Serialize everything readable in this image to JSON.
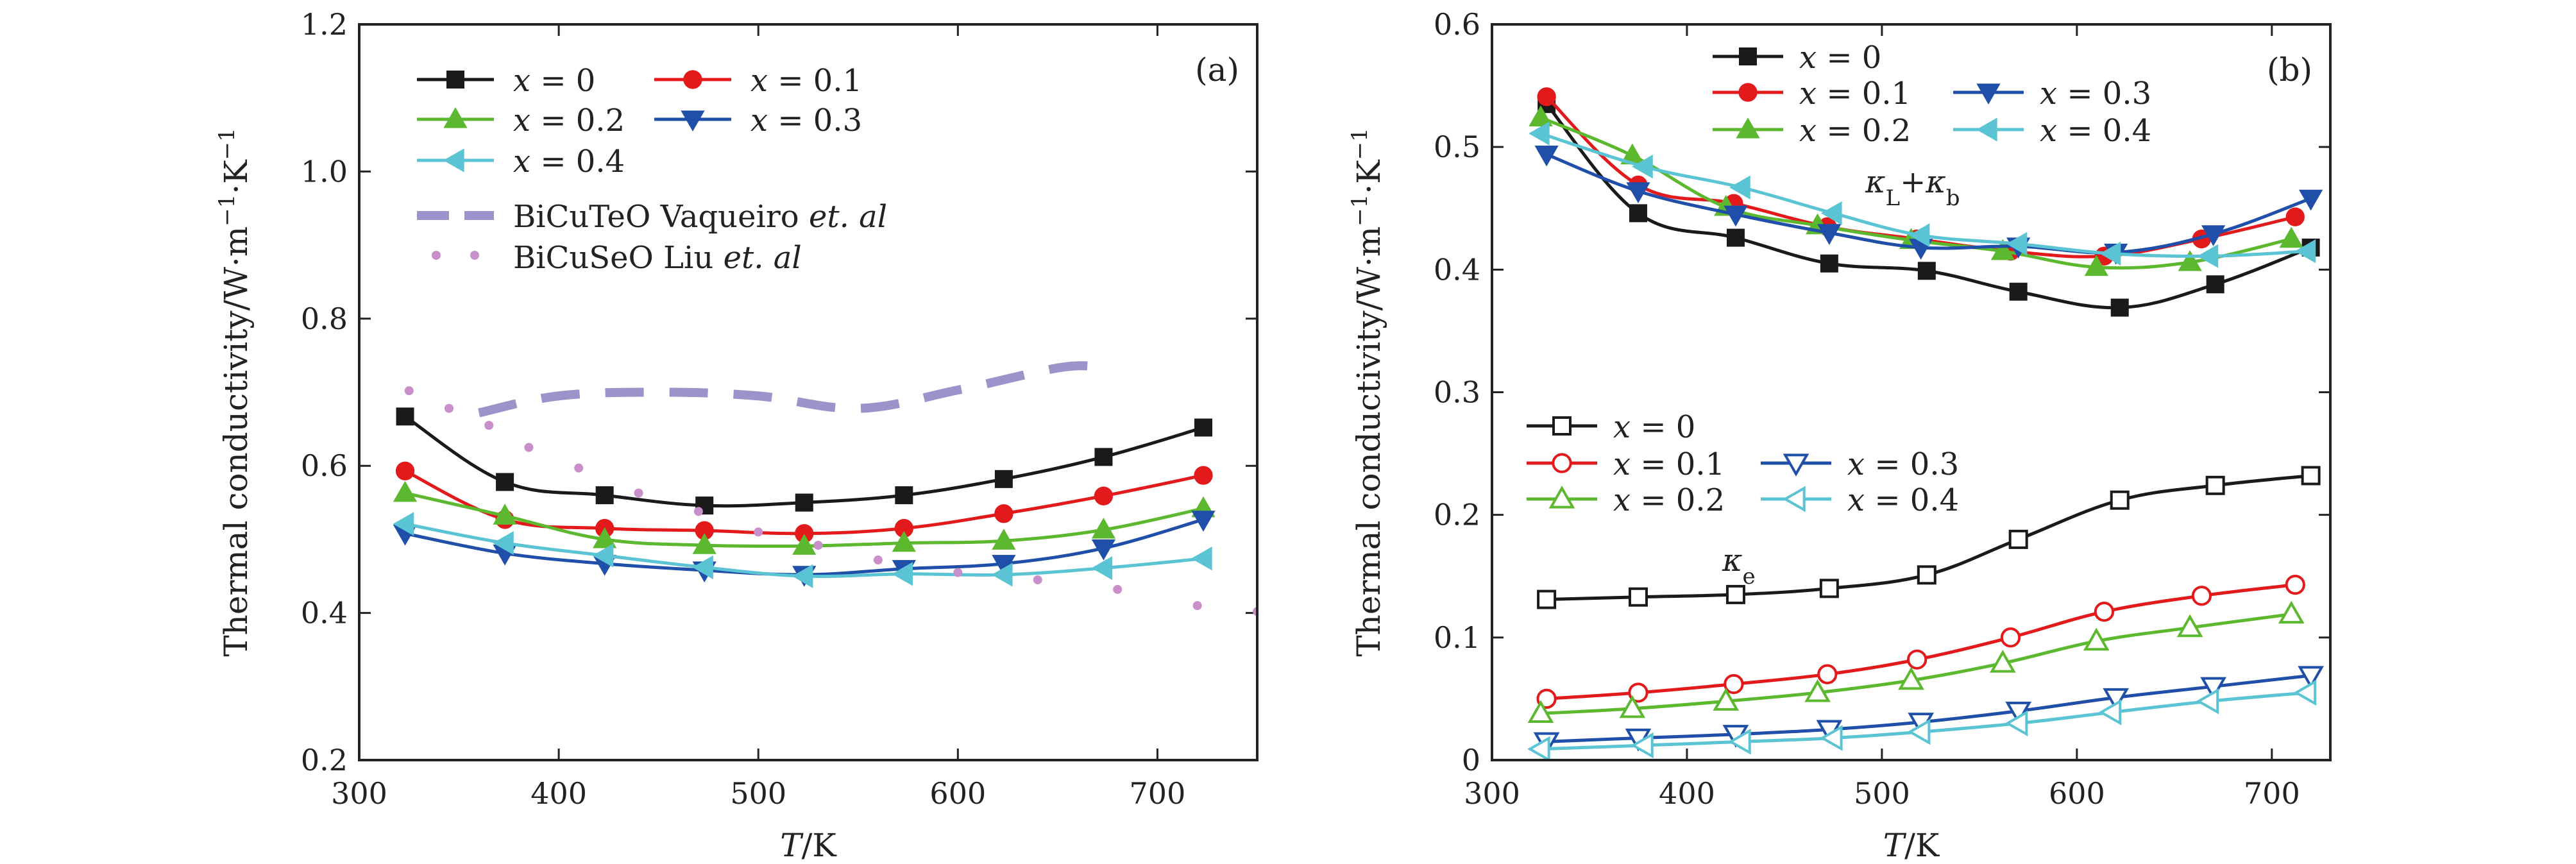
{
  "chart_data": [
    {
      "type": "line",
      "panel": "(a)",
      "xlabel": "T/K",
      "ylabel": "Thermal conductivity/W·m⁻¹·K⁻¹",
      "xlim": [
        300,
        750
      ],
      "ylim": [
        0.2,
        1.2
      ],
      "xticks": [
        "300",
        "400",
        "500",
        "600",
        "700"
      ],
      "yticks": [
        "0.2",
        "0.4",
        "0.6",
        "0.8",
        "1.0",
        "1.2"
      ],
      "x": [
        323,
        373,
        423,
        473,
        523,
        573,
        623,
        673,
        723
      ],
      "series": [
        {
          "name": "x = 0",
          "marker": "square",
          "color": "#1a1a1a",
          "values": [
            0.667,
            0.578,
            0.56,
            0.546,
            0.55,
            0.56,
            0.582,
            0.612,
            0.652
          ]
        },
        {
          "name": "x = 0.1",
          "marker": "circle",
          "color": "#e31a1c",
          "values": [
            0.593,
            0.527,
            0.515,
            0.512,
            0.508,
            0.515,
            0.535,
            0.559,
            0.587
          ]
        },
        {
          "name": "x = 0.2",
          "marker": "triangle-up",
          "color": "#5cb82e",
          "values": [
            0.563,
            0.532,
            0.5,
            0.492,
            0.491,
            0.495,
            0.498,
            0.513,
            0.542
          ]
        },
        {
          "name": "x = 0.3",
          "marker": "triangle-down",
          "color": "#1f4fa8",
          "values": [
            0.508,
            0.481,
            0.467,
            0.458,
            0.452,
            0.46,
            0.467,
            0.488,
            0.527
          ]
        },
        {
          "name": "x = 0.4",
          "marker": "triangle-left",
          "color": "#5bc4d4",
          "values": [
            0.521,
            0.495,
            0.478,
            0.462,
            0.45,
            0.453,
            0.452,
            0.461,
            0.474
          ]
        },
        {
          "name": "BiCuTeO Vaqueiro et. al",
          "style": "dashed",
          "color": "#9b93c9",
          "x": [
            360,
            400,
            450,
            500,
            550,
            600,
            650,
            670
          ],
          "values": [
            0.672,
            0.695,
            0.7,
            0.695,
            0.678,
            0.703,
            0.733,
            0.735
          ]
        },
        {
          "name": "BiCuSeO Liu et. al",
          "style": "dotted",
          "color": "#c98fcb",
          "x": [
            325,
            345,
            365,
            385,
            410,
            440,
            470,
            500,
            530,
            560,
            600,
            640,
            680,
            720,
            750
          ],
          "values": [
            0.702,
            0.678,
            0.655,
            0.625,
            0.597,
            0.563,
            0.538,
            0.51,
            0.492,
            0.472,
            0.455,
            0.445,
            0.432,
            0.41,
            0.402
          ]
        }
      ],
      "legend": [
        {
          "text": "x = 0",
          "var": "x",
          "val": "= 0"
        },
        {
          "text": "x = 0.1",
          "var": "x",
          "val": "= 0.1"
        },
        {
          "text": "x = 0.2",
          "var": "x",
          "val": "= 0.2"
        },
        {
          "text": "x = 0.3",
          "var": "x",
          "val": "= 0.3"
        },
        {
          "text": "x = 0.4",
          "var": "x",
          "val": "= 0.4"
        },
        {
          "text": "BiCuTeO Vaqueiro et. al",
          "pre": "BiCuTeO Vaqueiro ",
          "it": "et. al"
        },
        {
          "text": "BiCuSeO Liu et. al",
          "pre": "BiCuSeO Liu ",
          "it": "et. al"
        }
      ],
      "legend_position": "top-left"
    },
    {
      "type": "line",
      "panel": "(b)",
      "xlabel": "T/K",
      "ylabel": "Thermal conductivity/W·m⁻¹·K⁻¹",
      "xlim": [
        300,
        730
      ],
      "ylim": [
        0,
        0.6
      ],
      "xticks": [
        "300",
        "400",
        "500",
        "600",
        "700"
      ],
      "yticks": [
        "0",
        "0.1",
        "0.2",
        "0.3",
        "0.4",
        "0.5",
        "0.6"
      ],
      "annotations": [
        "κL+κb",
        "κe"
      ],
      "series": [
        {
          "name": "x = 0",
          "group": "κL+κb",
          "marker": "square",
          "filled": true,
          "color": "#1a1a1a",
          "x": [
            328,
            375,
            425,
            473,
            523,
            570,
            622,
            671,
            720
          ],
          "values": [
            0.535,
            0.446,
            0.426,
            0.405,
            0.399,
            0.382,
            0.369,
            0.388,
            0.418
          ]
        },
        {
          "name": "x = 0.1",
          "group": "κL+κb",
          "marker": "circle",
          "filled": true,
          "color": "#e31a1c",
          "x": [
            328,
            375,
            424,
            472,
            518,
            566,
            614,
            664,
            712
          ],
          "values": [
            0.541,
            0.469,
            0.454,
            0.435,
            0.425,
            0.415,
            0.411,
            0.425,
            0.443
          ]
        },
        {
          "name": "x = 0.2",
          "group": "κL+κb",
          "marker": "triangle-up",
          "filled": true,
          "color": "#5cb82e",
          "x": [
            325,
            372,
            420,
            467,
            515,
            562,
            610,
            658,
            710
          ],
          "values": [
            0.524,
            0.493,
            0.451,
            0.436,
            0.424,
            0.415,
            0.402,
            0.406,
            0.425
          ]
        },
        {
          "name": "x = 0.3",
          "group": "κL+κb",
          "marker": "triangle-down",
          "filled": true,
          "color": "#1f4fa8",
          "x": [
            328,
            375,
            425,
            473,
            520,
            570,
            620,
            670,
            720
          ],
          "values": [
            0.494,
            0.464,
            0.445,
            0.43,
            0.418,
            0.419,
            0.414,
            0.429,
            0.458
          ]
        },
        {
          "name": "x = 0.4",
          "group": "κL+κb",
          "marker": "triangle-left",
          "filled": true,
          "color": "#5bc4d4",
          "x": [
            325,
            378,
            428,
            475,
            520,
            570,
            618,
            668,
            718
          ],
          "values": [
            0.511,
            0.484,
            0.467,
            0.446,
            0.428,
            0.421,
            0.413,
            0.411,
            0.415
          ]
        },
        {
          "name": "x = 0",
          "group": "κe",
          "marker": "square",
          "filled": false,
          "color": "#1a1a1a",
          "x": [
            328,
            375,
            425,
            473,
            523,
            570,
            622,
            671,
            720
          ],
          "values": [
            0.131,
            0.133,
            0.135,
            0.14,
            0.151,
            0.18,
            0.212,
            0.224,
            0.232
          ]
        },
        {
          "name": "x = 0.1",
          "group": "κe",
          "marker": "circle",
          "filled": false,
          "color": "#e31a1c",
          "x": [
            328,
            375,
            424,
            472,
            518,
            566,
            614,
            664,
            712
          ],
          "values": [
            0.05,
            0.055,
            0.062,
            0.07,
            0.082,
            0.1,
            0.121,
            0.134,
            0.143
          ]
        },
        {
          "name": "x = 0.2",
          "group": "κe",
          "marker": "triangle-up",
          "filled": false,
          "color": "#5cb82e",
          "x": [
            325,
            372,
            420,
            467,
            515,
            562,
            610,
            658,
            710
          ],
          "values": [
            0.038,
            0.042,
            0.048,
            0.055,
            0.065,
            0.079,
            0.097,
            0.108,
            0.119
          ]
        },
        {
          "name": "x = 0.3",
          "group": "κe",
          "marker": "triangle-down",
          "filled": false,
          "color": "#1f4fa8",
          "x": [
            328,
            375,
            425,
            473,
            520,
            570,
            620,
            670,
            720
          ],
          "values": [
            0.015,
            0.018,
            0.021,
            0.025,
            0.031,
            0.04,
            0.051,
            0.06,
            0.069
          ]
        },
        {
          "name": "x = 0.4",
          "group": "κe",
          "marker": "triangle-left",
          "filled": false,
          "color": "#5bc4d4",
          "x": [
            325,
            378,
            428,
            475,
            520,
            570,
            618,
            668,
            718
          ],
          "values": [
            0.009,
            0.012,
            0.015,
            0.018,
            0.023,
            0.03,
            0.039,
            0.048,
            0.055
          ]
        }
      ],
      "legend_top": [
        {
          "text": "x = 0",
          "var": "x",
          "val": "= 0"
        },
        {
          "text": "x = 0.1",
          "var": "x",
          "val": "= 0.1"
        },
        {
          "text": "x = 0.3",
          "var": "x",
          "val": "= 0.3"
        },
        {
          "text": "x = 0.2",
          "var": "x",
          "val": "= 0.2"
        },
        {
          "text": "x = 0.4",
          "var": "x",
          "val": "= 0.4"
        }
      ],
      "legend_bottom": [
        {
          "text": "x = 0",
          "var": "x",
          "val": "= 0"
        },
        {
          "text": "x = 0.1",
          "var": "x",
          "val": "= 0.1"
        },
        {
          "text": "x = 0.3",
          "var": "x",
          "val": "= 0.3"
        },
        {
          "text": "x = 0.2",
          "var": "x",
          "val": "= 0.2"
        },
        {
          "text": "x = 0.4",
          "var": "x",
          "val": "= 0.4"
        }
      ]
    }
  ]
}
